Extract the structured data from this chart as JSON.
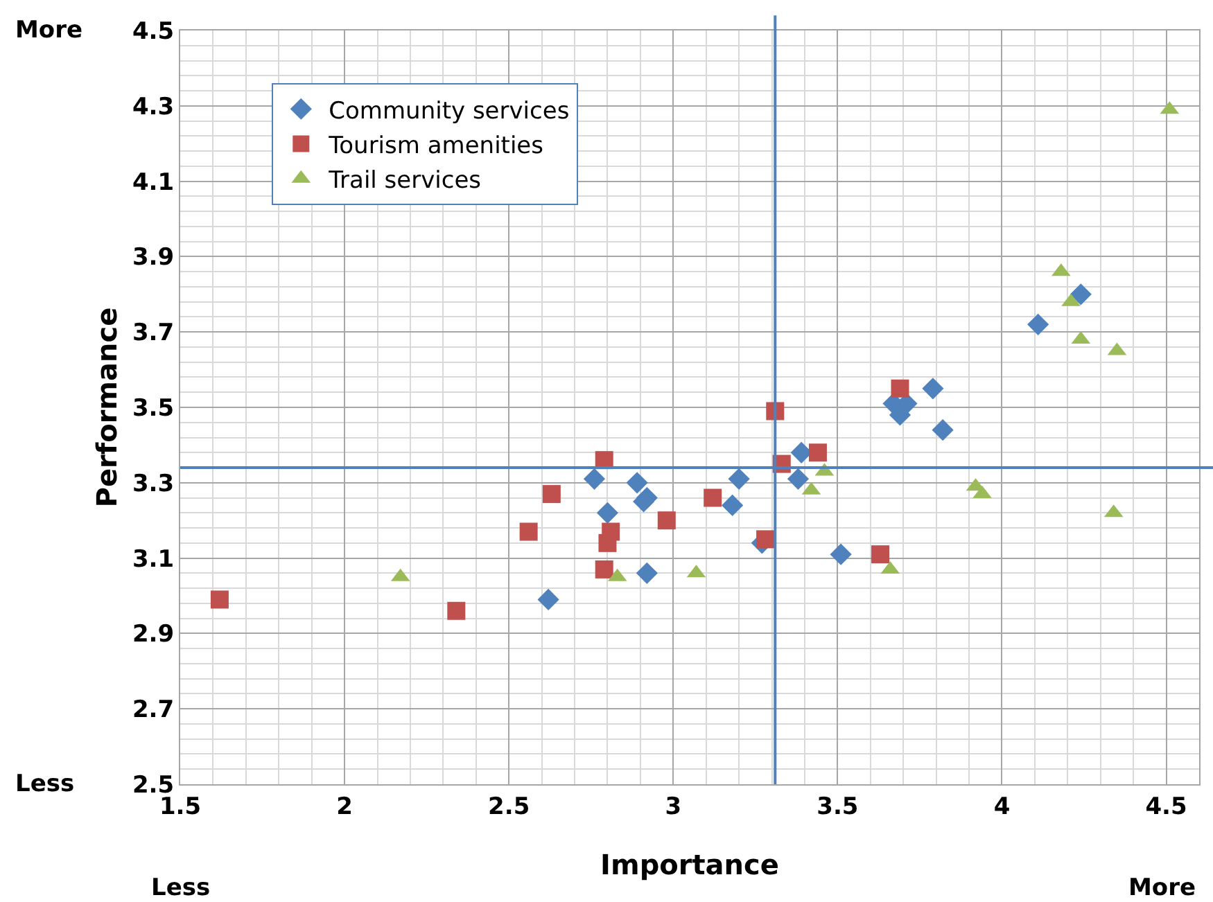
{
  "chart_data": {
    "type": "scatter",
    "xlabel": "Importance",
    "ylabel": "Performance",
    "annotations": [
      "More",
      "Less",
      "Less",
      "More"
    ],
    "xlim": [
      1.5,
      4.6
    ],
    "xticks": [
      1.5,
      2,
      2.5,
      3,
      3.5,
      4,
      4.5
    ],
    "ylim": [
      2.5,
      4.5
    ],
    "yticks": [
      2.5,
      2.7,
      2.9,
      3.1,
      3.3,
      3.5,
      3.7,
      3.9,
      4.1,
      4.3,
      4.5
    ],
    "grid": true,
    "legend": "top left",
    "ref_lines": [
      {
        "axis": "x",
        "value": 3.31,
        "color": "#4f81bd"
      },
      {
        "axis": "y",
        "value": 3.34,
        "color": "#4f81bd"
      }
    ],
    "series": [
      {
        "name": "Community services",
        "color": "#4f81bd",
        "marker": "diamond",
        "x": [
          2.62,
          2.76,
          2.8,
          2.89,
          2.92,
          2.91,
          2.92,
          3.18,
          3.2,
          3.27,
          3.39,
          3.38,
          3.51,
          3.67,
          3.71,
          3.69,
          3.79,
          3.82,
          4.11,
          4.24
        ],
        "values": [
          2.99,
          3.31,
          3.22,
          3.3,
          3.26,
          3.25,
          3.06,
          3.24,
          3.31,
          3.14,
          3.38,
          3.31,
          3.11,
          3.51,
          3.51,
          3.48,
          3.55,
          3.44,
          3.72,
          3.8
        ]
      },
      {
        "name": "Tourism amenities",
        "color": "#c0504d",
        "marker": "square",
        "x": [
          1.62,
          2.34,
          2.56,
          2.63,
          2.79,
          2.81,
          2.8,
          2.79,
          2.98,
          3.12,
          3.28,
          3.31,
          3.33,
          3.44,
          3.63,
          3.69
        ],
        "values": [
          2.99,
          2.96,
          3.17,
          3.27,
          3.36,
          3.17,
          3.14,
          3.07,
          3.2,
          3.26,
          3.15,
          3.49,
          3.35,
          3.38,
          3.11,
          3.55
        ]
      },
      {
        "name": "Trail services",
        "color": "#9bbb59",
        "marker": "triangle",
        "x": [
          2.17,
          2.83,
          3.07,
          3.42,
          3.46,
          3.66,
          3.92,
          3.94,
          4.18,
          4.21,
          4.24,
          4.35,
          4.34,
          4.51
        ],
        "values": [
          3.05,
          3.05,
          3.06,
          3.28,
          3.33,
          3.07,
          3.29,
          3.27,
          3.86,
          3.78,
          3.68,
          3.65,
          3.22,
          4.29
        ]
      }
    ]
  }
}
